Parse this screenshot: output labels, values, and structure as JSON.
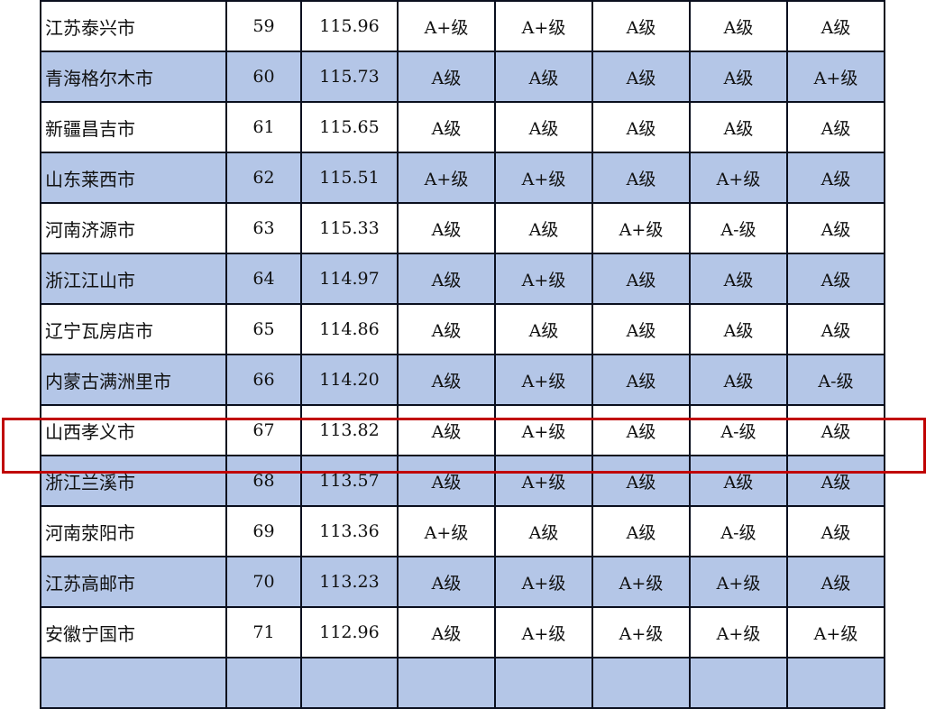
{
  "highlight_color": "#c00000",
  "alt_row_color": "#b4c6e7",
  "rows": [
    {
      "name": "",
      "rank": "",
      "score": "",
      "grades": [
        "",
        "",
        "",
        "",
        ""
      ],
      "partial": true
    },
    {
      "name": "江苏泰兴市",
      "rank": "59",
      "score": "115.96",
      "grades": [
        "A+级",
        "A+级",
        "A级",
        "A级",
        "A级"
      ]
    },
    {
      "name": "青海格尔木市",
      "rank": "60",
      "score": "115.73",
      "grades": [
        "A级",
        "A级",
        "A级",
        "A级",
        "A+级"
      ]
    },
    {
      "name": "新疆昌吉市",
      "rank": "61",
      "score": "115.65",
      "grades": [
        "A级",
        "A级",
        "A级",
        "A级",
        "A级"
      ]
    },
    {
      "name": "山东莱西市",
      "rank": "62",
      "score": "115.51",
      "grades": [
        "A+级",
        "A+级",
        "A级",
        "A+级",
        "A级"
      ]
    },
    {
      "name": "河南济源市",
      "rank": "63",
      "score": "115.33",
      "grades": [
        "A级",
        "A级",
        "A+级",
        "A-级",
        "A级"
      ]
    },
    {
      "name": "浙江江山市",
      "rank": "64",
      "score": "114.97",
      "grades": [
        "A级",
        "A+级",
        "A级",
        "A级",
        "A级"
      ]
    },
    {
      "name": "辽宁瓦房店市",
      "rank": "65",
      "score": "114.86",
      "grades": [
        "A级",
        "A级",
        "A级",
        "A级",
        "A级"
      ]
    },
    {
      "name": "内蒙古满洲里市",
      "rank": "66",
      "score": "114.20",
      "grades": [
        "A级",
        "A+级",
        "A级",
        "A级",
        "A-级"
      ]
    },
    {
      "name": "山西孝义市",
      "rank": "67",
      "score": "113.82",
      "grades": [
        "A级",
        "A+级",
        "A级",
        "A-级",
        "A级"
      ],
      "highlighted": true
    },
    {
      "name": "浙江兰溪市",
      "rank": "68",
      "score": "113.57",
      "grades": [
        "A级",
        "A+级",
        "A级",
        "A级",
        "A级"
      ]
    },
    {
      "name": "河南荥阳市",
      "rank": "69",
      "score": "113.36",
      "grades": [
        "A+级",
        "A级",
        "A级",
        "A-级",
        "A级"
      ]
    },
    {
      "name": "江苏高邮市",
      "rank": "70",
      "score": "113.23",
      "grades": [
        "A级",
        "A+级",
        "A+级",
        "A+级",
        "A级"
      ]
    },
    {
      "name": "安徽宁国市",
      "rank": "71",
      "score": "112.96",
      "grades": [
        "A级",
        "A+级",
        "A+级",
        "A+级",
        "A+级"
      ]
    },
    {
      "name": "",
      "rank": "",
      "score": "",
      "grades": [
        "",
        "",
        "",
        "",
        ""
      ],
      "partial": true
    }
  ]
}
